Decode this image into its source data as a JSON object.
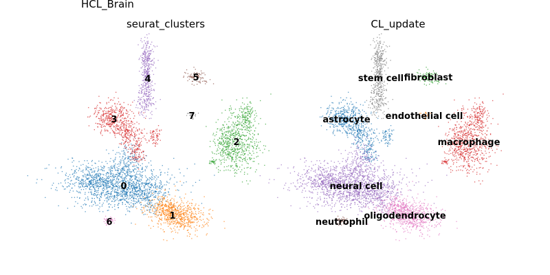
{
  "figure_title": "HCL_Brain",
  "chart_data": [
    {
      "type": "scatter",
      "title": "seurat_clusters",
      "xlabel": "",
      "ylabel": "",
      "axes": "off",
      "grid": false,
      "legend": "on data",
      "clusters": [
        {
          "label": "0",
          "color": "#1f77b4"
        },
        {
          "label": "1",
          "color": "#ff7f0e"
        },
        {
          "label": "2",
          "color": "#2ca02c"
        },
        {
          "label": "3",
          "color": "#d62728"
        },
        {
          "label": "4",
          "color": "#9467bd"
        },
        {
          "label": "5",
          "color": "#8c564b"
        },
        {
          "label": "6",
          "color": "#e377c2"
        },
        {
          "label": "7",
          "color": "#7f7f7f"
        }
      ]
    },
    {
      "type": "scatter",
      "title": "CL_update",
      "xlabel": "",
      "ylabel": "",
      "axes": "off",
      "grid": false,
      "legend": "on data",
      "clusters": [
        {
          "label": "astrocyte",
          "color": "#1f77b4"
        },
        {
          "label": "endothelial cell",
          "color": "#ff7f0e"
        },
        {
          "label": "fibroblast",
          "color": "#2ca02c"
        },
        {
          "label": "macrophage",
          "color": "#d62728"
        },
        {
          "label": "neural cell",
          "color": "#9467bd"
        },
        {
          "label": "neutrophil",
          "color": "#8c564b"
        },
        {
          "label": "oligodendrocyte",
          "color": "#e377c2"
        },
        {
          "label": "stem cell",
          "color": "#7f7f7f"
        }
      ]
    }
  ]
}
